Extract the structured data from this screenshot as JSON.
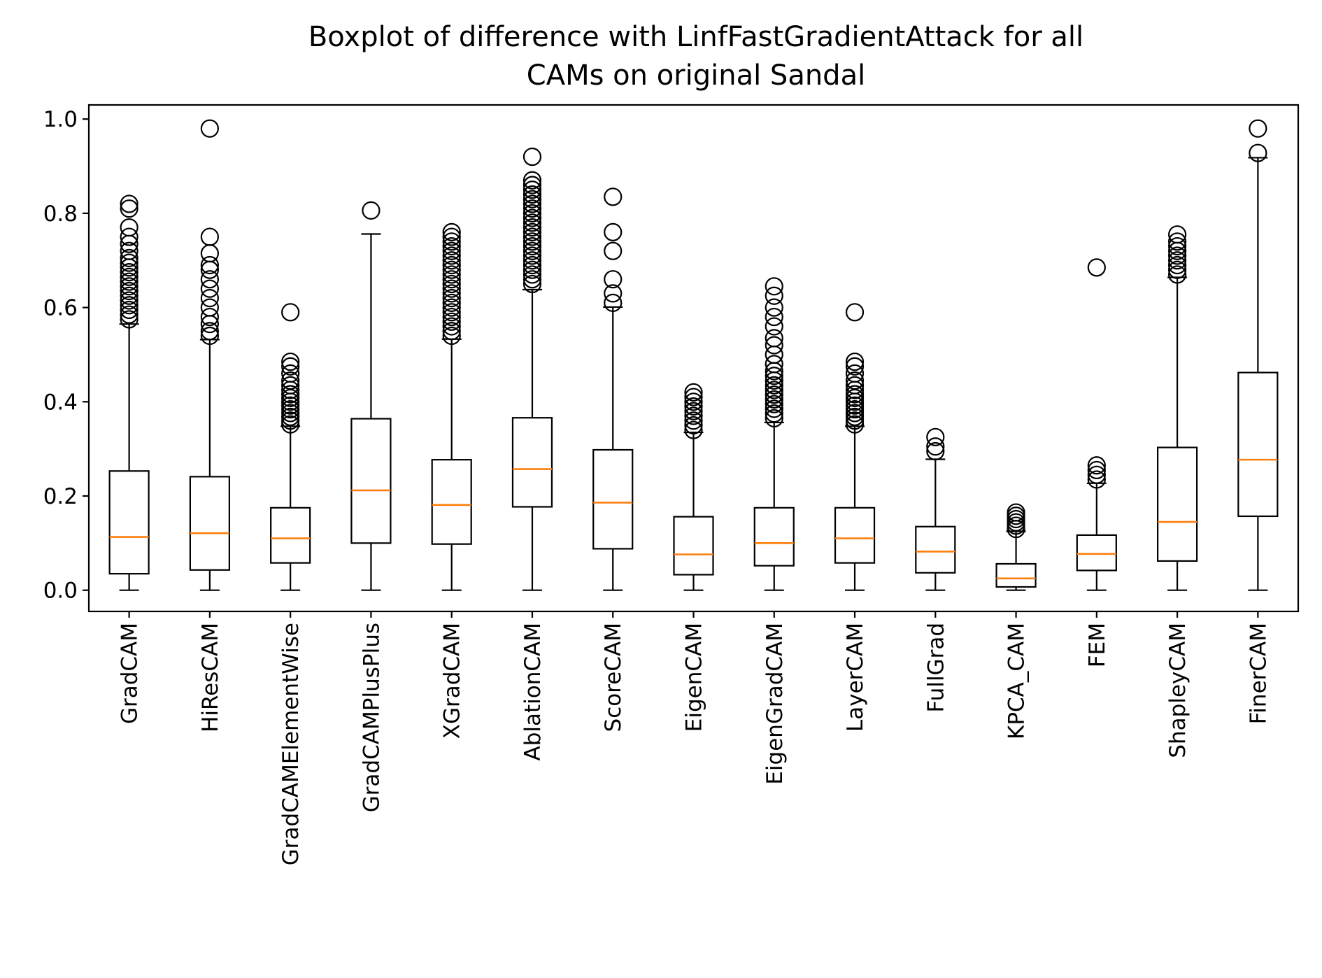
{
  "chart_data": {
    "type": "boxplot",
    "title": [
      "Boxplot of difference with LinfFastGradientAttack for all",
      "CAMs on original Sandal"
    ],
    "xlabel": "",
    "ylabel": "",
    "ylim": [
      -0.045,
      1.03
    ],
    "yticks": [
      "0.0",
      "0.2",
      "0.4",
      "0.6",
      "0.8",
      "1.0"
    ],
    "ytick_values": [
      0.0,
      0.2,
      0.4,
      0.6,
      0.8,
      1.0
    ],
    "grid": false,
    "colors": {
      "box": "#000000",
      "median": "#ff7f0e"
    },
    "boxes": [
      {
        "label": "GradCAM",
        "whislo": 0.0,
        "q1": 0.035,
        "med": 0.113,
        "q3": 0.253,
        "whishi": 0.565,
        "fliers": [
          0.575,
          0.585,
          0.595,
          0.605,
          0.615,
          0.625,
          0.635,
          0.645,
          0.655,
          0.665,
          0.675,
          0.685,
          0.695,
          0.705,
          0.72,
          0.735,
          0.75,
          0.77,
          0.81,
          0.82
        ]
      },
      {
        "label": "HiResCAM",
        "whislo": 0.0,
        "q1": 0.043,
        "med": 0.121,
        "q3": 0.241,
        "whishi": 0.532,
        "fliers": [
          0.54,
          0.55,
          0.565,
          0.58,
          0.6,
          0.62,
          0.64,
          0.66,
          0.68,
          0.69,
          0.715,
          0.75,
          0.98
        ]
      },
      {
        "label": "GradCAMElementWise",
        "whislo": 0.0,
        "q1": 0.058,
        "med": 0.11,
        "q3": 0.175,
        "whishi": 0.348,
        "fliers": [
          0.352,
          0.36,
          0.368,
          0.376,
          0.384,
          0.392,
          0.4,
          0.408,
          0.416,
          0.425,
          0.435,
          0.445,
          0.46,
          0.475,
          0.485,
          0.59
        ]
      },
      {
        "label": "GradCAMPlusPlus",
        "whislo": 0.0,
        "q1": 0.1,
        "med": 0.212,
        "q3": 0.364,
        "whishi": 0.756,
        "fliers": [
          0.806
        ]
      },
      {
        "label": "XGradCAM",
        "whislo": 0.0,
        "q1": 0.098,
        "med": 0.181,
        "q3": 0.277,
        "whishi": 0.533,
        "fliers": [
          0.54,
          0.55,
          0.56,
          0.57,
          0.58,
          0.59,
          0.6,
          0.61,
          0.62,
          0.63,
          0.64,
          0.65,
          0.66,
          0.67,
          0.68,
          0.69,
          0.7,
          0.71,
          0.72,
          0.73,
          0.74,
          0.75,
          0.76
        ]
      },
      {
        "label": "AblationCAM",
        "whislo": 0.0,
        "q1": 0.177,
        "med": 0.257,
        "q3": 0.366,
        "whishi": 0.638,
        "fliers": [
          0.65,
          0.66,
          0.67,
          0.68,
          0.69,
          0.7,
          0.71,
          0.72,
          0.73,
          0.74,
          0.75,
          0.76,
          0.77,
          0.78,
          0.79,
          0.8,
          0.81,
          0.82,
          0.83,
          0.84,
          0.85,
          0.86,
          0.87,
          0.92
        ]
      },
      {
        "label": "ScoreCAM",
        "whislo": 0.0,
        "q1": 0.088,
        "med": 0.186,
        "q3": 0.298,
        "whishi": 0.601,
        "fliers": [
          0.61,
          0.63,
          0.66,
          0.72,
          0.76,
          0.835
        ]
      },
      {
        "label": "EigenCAM",
        "whislo": 0.0,
        "q1": 0.033,
        "med": 0.076,
        "q3": 0.156,
        "whishi": 0.335,
        "fliers": [
          0.34,
          0.35,
          0.36,
          0.37,
          0.38,
          0.39,
          0.4,
          0.41,
          0.42
        ]
      },
      {
        "label": "EigenGradCAM",
        "whislo": 0.0,
        "q1": 0.052,
        "med": 0.1,
        "q3": 0.175,
        "whishi": 0.356,
        "fliers": [
          0.365,
          0.375,
          0.385,
          0.395,
          0.405,
          0.415,
          0.425,
          0.435,
          0.445,
          0.455,
          0.465,
          0.48,
          0.5,
          0.52,
          0.535,
          0.56,
          0.58,
          0.6,
          0.625,
          0.645
        ]
      },
      {
        "label": "LayerCAM",
        "whislo": 0.0,
        "q1": 0.058,
        "med": 0.11,
        "q3": 0.175,
        "whishi": 0.348,
        "fliers": [
          0.352,
          0.36,
          0.368,
          0.376,
          0.384,
          0.392,
          0.4,
          0.408,
          0.416,
          0.425,
          0.435,
          0.445,
          0.46,
          0.475,
          0.485,
          0.59
        ]
      },
      {
        "label": "FullGrad",
        "whislo": 0.0,
        "q1": 0.037,
        "med": 0.082,
        "q3": 0.135,
        "whishi": 0.278,
        "fliers": [
          0.295,
          0.305,
          0.325
        ]
      },
      {
        "label": "KPCA_CAM",
        "whislo": 0.0,
        "q1": 0.007,
        "med": 0.025,
        "q3": 0.056,
        "whishi": 0.125,
        "fliers": [
          0.13,
          0.137,
          0.144,
          0.151,
          0.158,
          0.165
        ]
      },
      {
        "label": "FEM",
        "whislo": 0.0,
        "q1": 0.042,
        "med": 0.077,
        "q3": 0.117,
        "whishi": 0.227,
        "fliers": [
          0.235,
          0.245,
          0.255,
          0.265,
          0.685
        ]
      },
      {
        "label": "ShapleyCAM",
        "whislo": 0.0,
        "q1": 0.062,
        "med": 0.145,
        "q3": 0.303,
        "whishi": 0.664,
        "fliers": [
          0.67,
          0.68,
          0.69,
          0.7,
          0.71,
          0.72,
          0.73,
          0.74,
          0.755
        ]
      },
      {
        "label": "FinerCAM",
        "whislo": 0.0,
        "q1": 0.157,
        "med": 0.277,
        "q3": 0.462,
        "whishi": 0.918,
        "fliers": [
          0.928,
          0.98
        ]
      }
    ]
  }
}
